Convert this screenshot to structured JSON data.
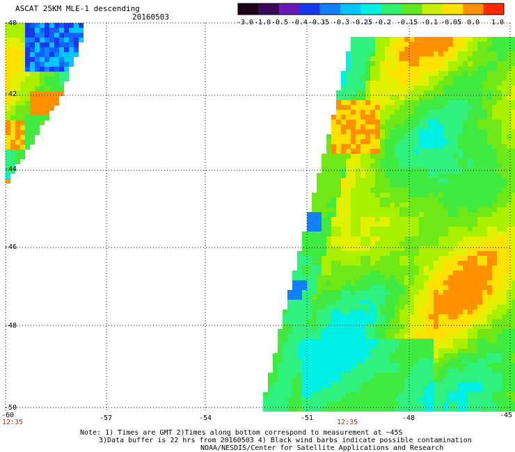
{
  "header": {
    "title": "ASCAT 25KM MLE-1 descending",
    "date": "20160503"
  },
  "colorbar": {
    "tick_labels": [
      "-3.0",
      "-1.0",
      "-0.5",
      "-0.4",
      "-0.35",
      "-0.3",
      "-0.25",
      "-0.2",
      "-0.15",
      "-0.1",
      "-0.05",
      "0.0",
      "1.0"
    ],
    "colors": [
      "#1a0018",
      "#3a0a5a",
      "#6a18b8",
      "#1838f0",
      "#1080ff",
      "#00c8ff",
      "#00f0e6",
      "#30f070",
      "#60e820",
      "#c8f000",
      "#ffe000",
      "#ff9000",
      "#ff2800"
    ]
  },
  "map": {
    "lat_labels": [
      "-40",
      "-42",
      "-44",
      "-46",
      "-48",
      "-50"
    ],
    "lon_labels": [
      "-60",
      "-57",
      "-54",
      "-51",
      "-48",
      "-45"
    ],
    "time_labels": [
      "12:35",
      "12:35"
    ],
    "grid": true,
    "lon_range": [
      -60,
      -45
    ],
    "lat_range": [
      -50,
      -40
    ]
  },
  "notes": {
    "line1": "Note: 1) Times are GMT 2)Times along bottom correspond to measurement at ~45S",
    "line2": "3)Data buffer is 22 hrs from 20160503 4) Black wind barbs indicate possible contamination",
    "line3": "NOAA/NESDIS/Center for Satellite Applications and Research"
  }
}
